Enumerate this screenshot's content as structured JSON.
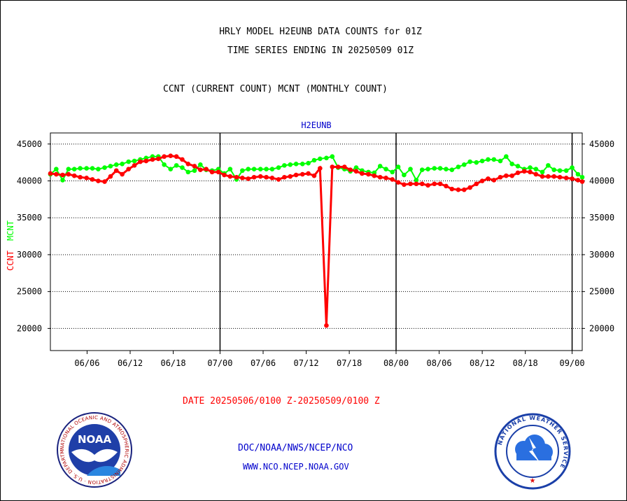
{
  "header": {
    "title1": "HRLY MODEL H2EUNB DATA COUNTS for 01Z",
    "title2": "TIME SERIES ENDING IN 20250509 01Z",
    "subtitle": "CCNT (CURRENT COUNT) MCNT (MONTHLY COUNT)"
  },
  "footer": {
    "date_range": "DATE 20250506/0100 Z-20250509/0100 Z",
    "org": "DOC/NOAA/NWS/NCEP/NCO",
    "url": "WWW.NCO.NCEP.NOAA.GOV"
  },
  "logos": {
    "left_text": "NOAA",
    "left_ring": "NATIONAL OCEANIC AND ATMOSPHERIC ADMINISTRATION · U.S. DEPARTMENT OF COMMERCE",
    "right_ring": "NATIONAL WEATHER SERVICE"
  },
  "colors": {
    "ccnt": "#ff0000",
    "mcnt": "#00ff00",
    "title_blue": "#0000cc",
    "date_red": "#ff0000"
  },
  "chart_data": {
    "type": "line",
    "title": "H2EUNB",
    "ylabel_ccnt": "CCNT",
    "ylabel_mcnt": "MCNT",
    "yticks": [
      20000,
      25000,
      30000,
      35000,
      40000,
      45000
    ],
    "ylim": [
      17000,
      46500
    ],
    "xlim": [
      0,
      100
    ],
    "xticks": [
      {
        "x": 6.9,
        "label": "06/06"
      },
      {
        "x": 15.0,
        "label": "06/12"
      },
      {
        "x": 23.1,
        "label": "06/18"
      },
      {
        "x": 31.9,
        "label": "07/00"
      },
      {
        "x": 40.0,
        "label": "07/06"
      },
      {
        "x": 48.1,
        "label": "07/12"
      },
      {
        "x": 56.2,
        "label": "07/18"
      },
      {
        "x": 65.0,
        "label": "08/00"
      },
      {
        "x": 73.1,
        "label": "08/06"
      },
      {
        "x": 81.2,
        "label": "08/12"
      },
      {
        "x": 89.3,
        "label": "08/18"
      },
      {
        "x": 98.1,
        "label": "09/00"
      }
    ],
    "day_dividers": [
      31.9,
      65.0,
      98.1
    ],
    "grid": true,
    "series": [
      {
        "name": "CCNT",
        "color": "#ff0000",
        "points": [
          [
            0,
            41000
          ],
          [
            1.1,
            40900
          ],
          [
            2.3,
            40800
          ],
          [
            3.4,
            40900
          ],
          [
            4.5,
            40700
          ],
          [
            5.6,
            40500
          ],
          [
            6.8,
            40400
          ],
          [
            7.9,
            40200
          ],
          [
            9.0,
            40000
          ],
          [
            10.2,
            39900
          ],
          [
            11.3,
            40600
          ],
          [
            12.4,
            41400
          ],
          [
            13.5,
            40900
          ],
          [
            14.7,
            41600
          ],
          [
            15.8,
            42100
          ],
          [
            16.9,
            42600
          ],
          [
            18.0,
            42700
          ],
          [
            19.2,
            42900
          ],
          [
            20.3,
            43000
          ],
          [
            21.4,
            43300
          ],
          [
            22.6,
            43400
          ],
          [
            23.7,
            43300
          ],
          [
            24.8,
            42900
          ],
          [
            25.9,
            42300
          ],
          [
            27.1,
            42000
          ],
          [
            28.2,
            41500
          ],
          [
            29.3,
            41600
          ],
          [
            30.4,
            41200
          ],
          [
            31.6,
            41200
          ],
          [
            32.7,
            40800
          ],
          [
            33.8,
            40600
          ],
          [
            35.0,
            40500
          ],
          [
            36.1,
            40400
          ],
          [
            37.2,
            40300
          ],
          [
            38.3,
            40500
          ],
          [
            39.5,
            40600
          ],
          [
            40.6,
            40500
          ],
          [
            41.7,
            40400
          ],
          [
            42.9,
            40200
          ],
          [
            44.0,
            40500
          ],
          [
            45.1,
            40600
          ],
          [
            46.2,
            40800
          ],
          [
            47.4,
            40900
          ],
          [
            48.5,
            41000
          ],
          [
            49.6,
            40700
          ],
          [
            50.7,
            41700
          ],
          [
            51.9,
            20400
          ],
          [
            53.0,
            41900
          ],
          [
            54.1,
            41900
          ],
          [
            55.3,
            41900
          ],
          [
            56.4,
            41500
          ],
          [
            57.5,
            41300
          ],
          [
            58.6,
            41000
          ],
          [
            59.8,
            40900
          ],
          [
            60.9,
            40700
          ],
          [
            62.0,
            40500
          ],
          [
            63.1,
            40400
          ],
          [
            64.3,
            40200
          ],
          [
            65.4,
            39800
          ],
          [
            66.5,
            39500
          ],
          [
            67.7,
            39600
          ],
          [
            68.8,
            39600
          ],
          [
            69.9,
            39600
          ],
          [
            71.0,
            39400
          ],
          [
            72.2,
            39600
          ],
          [
            73.3,
            39600
          ],
          [
            74.4,
            39300
          ],
          [
            75.5,
            38900
          ],
          [
            76.7,
            38800
          ],
          [
            77.8,
            38800
          ],
          [
            78.9,
            39100
          ],
          [
            80.1,
            39600
          ],
          [
            81.2,
            40000
          ],
          [
            82.3,
            40300
          ],
          [
            83.4,
            40100
          ],
          [
            84.6,
            40500
          ],
          [
            85.7,
            40700
          ],
          [
            86.8,
            40700
          ],
          [
            87.9,
            41100
          ],
          [
            89.1,
            41300
          ],
          [
            90.2,
            41200
          ],
          [
            91.3,
            40900
          ],
          [
            92.5,
            40600
          ],
          [
            93.6,
            40600
          ],
          [
            94.7,
            40600
          ],
          [
            95.8,
            40500
          ],
          [
            97.0,
            40400
          ],
          [
            98.1,
            40300
          ],
          [
            99.2,
            40100
          ],
          [
            100,
            39900
          ]
        ]
      },
      {
        "name": "MCNT",
        "color": "#00ff00",
        "points": [
          [
            0,
            40900
          ],
          [
            1.1,
            41600
          ],
          [
            2.3,
            40100
          ],
          [
            3.4,
            41600
          ],
          [
            4.5,
            41600
          ],
          [
            5.6,
            41700
          ],
          [
            6.8,
            41700
          ],
          [
            7.9,
            41700
          ],
          [
            9.0,
            41600
          ],
          [
            10.2,
            41800
          ],
          [
            11.3,
            42000
          ],
          [
            12.4,
            42200
          ],
          [
            13.5,
            42300
          ],
          [
            14.7,
            42600
          ],
          [
            15.8,
            42700
          ],
          [
            16.9,
            42900
          ],
          [
            18.0,
            43100
          ],
          [
            19.2,
            43300
          ],
          [
            20.3,
            43300
          ],
          [
            21.4,
            42200
          ],
          [
            22.6,
            41600
          ],
          [
            23.7,
            42100
          ],
          [
            24.8,
            41800
          ],
          [
            25.9,
            41200
          ],
          [
            27.1,
            41400
          ],
          [
            28.2,
            42200
          ],
          [
            29.3,
            41500
          ],
          [
            30.4,
            41400
          ],
          [
            31.6,
            41600
          ],
          [
            32.7,
            41000
          ],
          [
            33.8,
            41600
          ],
          [
            35.0,
            40200
          ],
          [
            36.1,
            41400
          ],
          [
            37.2,
            41600
          ],
          [
            38.3,
            41600
          ],
          [
            39.5,
            41600
          ],
          [
            40.6,
            41600
          ],
          [
            41.7,
            41600
          ],
          [
            42.9,
            41800
          ],
          [
            44.0,
            42100
          ],
          [
            45.1,
            42200
          ],
          [
            46.2,
            42300
          ],
          [
            47.4,
            42300
          ],
          [
            48.5,
            42400
          ],
          [
            49.6,
            42800
          ],
          [
            50.7,
            43000
          ],
          [
            51.9,
            43100
          ],
          [
            53.0,
            43300
          ],
          [
            54.1,
            41800
          ],
          [
            55.3,
            41600
          ],
          [
            56.4,
            41300
          ],
          [
            57.5,
            41800
          ],
          [
            58.6,
            41400
          ],
          [
            59.8,
            41200
          ],
          [
            60.9,
            41100
          ],
          [
            62.0,
            42000
          ],
          [
            63.1,
            41600
          ],
          [
            64.3,
            41200
          ],
          [
            65.4,
            41900
          ],
          [
            66.5,
            40800
          ],
          [
            67.7,
            41600
          ],
          [
            68.8,
            40100
          ],
          [
            69.9,
            41500
          ],
          [
            71.0,
            41600
          ],
          [
            72.2,
            41700
          ],
          [
            73.3,
            41700
          ],
          [
            74.4,
            41600
          ],
          [
            75.5,
            41500
          ],
          [
            76.7,
            41900
          ],
          [
            77.8,
            42200
          ],
          [
            78.9,
            42600
          ],
          [
            80.1,
            42500
          ],
          [
            81.2,
            42700
          ],
          [
            82.3,
            42900
          ],
          [
            83.4,
            42900
          ],
          [
            84.6,
            42700
          ],
          [
            85.7,
            43300
          ],
          [
            86.8,
            42300
          ],
          [
            87.9,
            42000
          ],
          [
            89.1,
            41600
          ],
          [
            90.2,
            41800
          ],
          [
            91.3,
            41600
          ],
          [
            92.5,
            41200
          ],
          [
            93.6,
            42100
          ],
          [
            94.7,
            41500
          ],
          [
            95.8,
            41400
          ],
          [
            97.0,
            41400
          ],
          [
            98.1,
            41800
          ],
          [
            99.2,
            40900
          ],
          [
            100,
            40500
          ]
        ]
      }
    ]
  }
}
